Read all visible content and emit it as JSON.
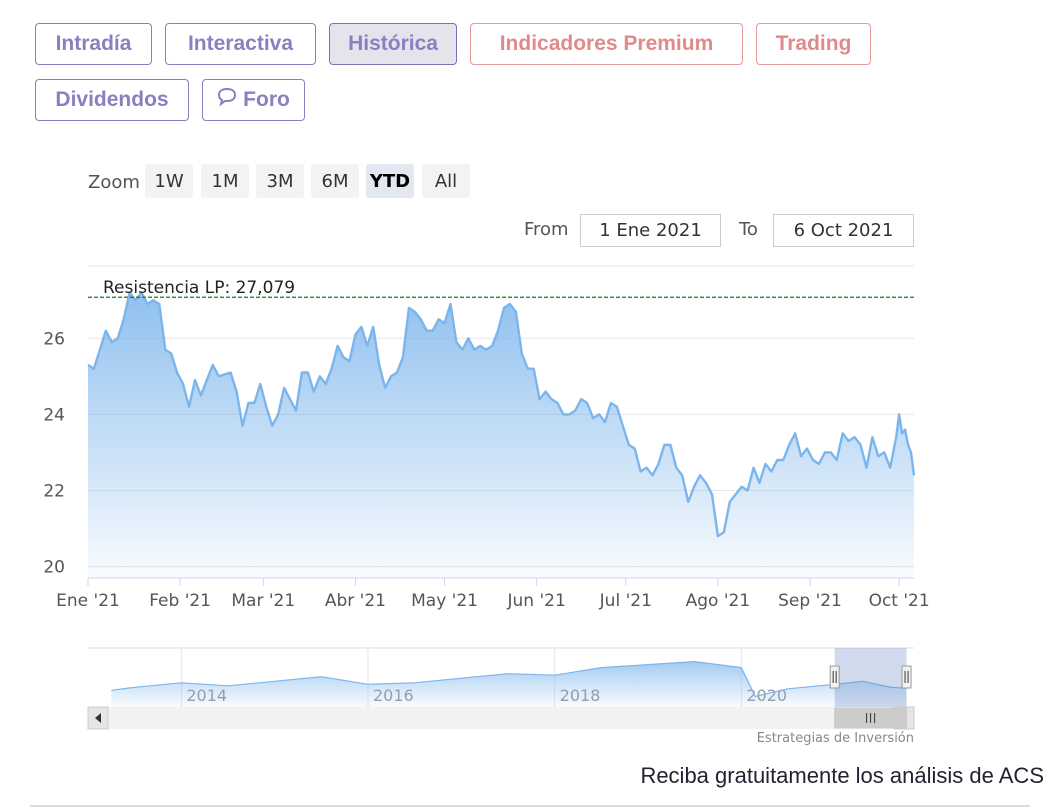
{
  "tabs": [
    {
      "label": "Intradía",
      "active": false,
      "premium": false
    },
    {
      "label": "Interactiva",
      "active": false,
      "premium": false
    },
    {
      "label": "Histórica",
      "active": true,
      "premium": false
    },
    {
      "label": "Indicadores Premium",
      "active": false,
      "premium": true
    },
    {
      "label": "Trading",
      "active": false,
      "premium": true
    },
    {
      "label": "Dividendos",
      "active": false,
      "premium": false
    },
    {
      "label": "Foro",
      "active": false,
      "premium": false,
      "icon": "chat-bubble-icon"
    }
  ],
  "zoom": {
    "label": "Zoom",
    "buttons": [
      "1W",
      "1M",
      "3M",
      "6M",
      "YTD",
      "All"
    ],
    "selected": "YTD"
  },
  "range": {
    "from_label": "From",
    "from_value": "1 Ene 2021",
    "to_label": "To",
    "to_value": "6 Oct 2021"
  },
  "credit": "Estrategias de Inversión",
  "footer": "Reciba gratuitamente los análisis de ACS",
  "colors": {
    "accent": "#8a7fc0",
    "premium": "#e08a8a",
    "line": "#7cb5ec",
    "resistance": "#1a7a1a"
  },
  "chart_data": {
    "type": "area",
    "title": "",
    "xlabel": "",
    "ylabel": "",
    "ylim": [
      19.7,
      27.9
    ],
    "y_ticks": [
      "20",
      "22",
      "24",
      "26"
    ],
    "x_ticks": [
      "Ene '21",
      "Feb '21",
      "Mar '21",
      "Abr '21",
      "May '21",
      "Jun '21",
      "Jul '21",
      "Ago '21",
      "Sep '21",
      "Oct '21"
    ],
    "grid": true,
    "resistance": {
      "label": "Resistencia LP: 27,079",
      "value": 27.079
    },
    "series": [
      {
        "points": [
          [
            "2021-01-01",
            25.3
          ],
          [
            "2021-01-03",
            25.2
          ],
          [
            "2021-01-05",
            25.7
          ],
          [
            "2021-01-07",
            26.2
          ],
          [
            "2021-01-09",
            25.9
          ],
          [
            "2021-01-11",
            26.0
          ],
          [
            "2021-01-13",
            26.5
          ],
          [
            "2021-01-15",
            27.2
          ],
          [
            "2021-01-17",
            27.0
          ],
          [
            "2021-01-19",
            27.2
          ],
          [
            "2021-01-21",
            26.9
          ],
          [
            "2021-01-23",
            27.0
          ],
          [
            "2021-01-25",
            26.9
          ],
          [
            "2021-01-27",
            25.7
          ],
          [
            "2021-01-29",
            25.6
          ],
          [
            "2021-01-31",
            25.1
          ],
          [
            "2021-02-02",
            24.8
          ],
          [
            "2021-02-04",
            24.2
          ],
          [
            "2021-02-06",
            24.9
          ],
          [
            "2021-02-08",
            24.5
          ],
          [
            "2021-02-10",
            24.9
          ],
          [
            "2021-02-12",
            25.3
          ],
          [
            "2021-02-14",
            25.0
          ],
          [
            "2021-02-18",
            25.1
          ],
          [
            "2021-02-20",
            24.6
          ],
          [
            "2021-02-22",
            23.7
          ],
          [
            "2021-02-24",
            24.3
          ],
          [
            "2021-02-26",
            24.3
          ],
          [
            "2021-02-28",
            24.8
          ],
          [
            "2021-03-02",
            24.2
          ],
          [
            "2021-03-04",
            23.7
          ],
          [
            "2021-03-06",
            24.0
          ],
          [
            "2021-03-08",
            24.7
          ],
          [
            "2021-03-10",
            24.4
          ],
          [
            "2021-03-12",
            24.1
          ],
          [
            "2021-03-14",
            25.1
          ],
          [
            "2021-03-16",
            25.1
          ],
          [
            "2021-03-18",
            24.6
          ],
          [
            "2021-03-20",
            25.0
          ],
          [
            "2021-03-22",
            24.8
          ],
          [
            "2021-03-24",
            25.2
          ],
          [
            "2021-03-26",
            25.8
          ],
          [
            "2021-03-28",
            25.5
          ],
          [
            "2021-03-30",
            25.4
          ],
          [
            "2021-04-01",
            26.1
          ],
          [
            "2021-04-03",
            26.3
          ],
          [
            "2021-04-05",
            25.8
          ],
          [
            "2021-04-07",
            26.3
          ],
          [
            "2021-04-09",
            25.3
          ],
          [
            "2021-04-11",
            24.7
          ],
          [
            "2021-04-13",
            25.0
          ],
          [
            "2021-04-15",
            25.1
          ],
          [
            "2021-04-17",
            25.5
          ],
          [
            "2021-04-19",
            26.8
          ],
          [
            "2021-04-21",
            26.7
          ],
          [
            "2021-04-23",
            26.5
          ],
          [
            "2021-04-25",
            26.2
          ],
          [
            "2021-04-27",
            26.2
          ],
          [
            "2021-04-29",
            26.5
          ],
          [
            "2021-05-01",
            26.4
          ],
          [
            "2021-05-03",
            26.9
          ],
          [
            "2021-05-05",
            25.9
          ],
          [
            "2021-05-07",
            25.7
          ],
          [
            "2021-05-09",
            26.0
          ],
          [
            "2021-05-11",
            25.7
          ],
          [
            "2021-05-13",
            25.8
          ],
          [
            "2021-05-15",
            25.7
          ],
          [
            "2021-05-17",
            25.8
          ],
          [
            "2021-05-19",
            26.2
          ],
          [
            "2021-05-21",
            26.8
          ],
          [
            "2021-05-23",
            26.9
          ],
          [
            "2021-05-25",
            26.7
          ],
          [
            "2021-05-27",
            25.6
          ],
          [
            "2021-05-29",
            25.2
          ],
          [
            "2021-05-31",
            25.2
          ],
          [
            "2021-06-02",
            24.4
          ],
          [
            "2021-06-04",
            24.6
          ],
          [
            "2021-06-06",
            24.4
          ],
          [
            "2021-06-08",
            24.3
          ],
          [
            "2021-06-10",
            24.0
          ],
          [
            "2021-06-12",
            24.0
          ],
          [
            "2021-06-14",
            24.1
          ],
          [
            "2021-06-16",
            24.4
          ],
          [
            "2021-06-18",
            24.3
          ],
          [
            "2021-06-20",
            23.9
          ],
          [
            "2021-06-22",
            24.0
          ],
          [
            "2021-06-24",
            23.8
          ],
          [
            "2021-06-26",
            24.3
          ],
          [
            "2021-06-28",
            24.2
          ],
          [
            "2021-06-30",
            23.7
          ],
          [
            "2021-07-02",
            23.2
          ],
          [
            "2021-07-04",
            23.1
          ],
          [
            "2021-07-06",
            22.5
          ],
          [
            "2021-07-08",
            22.6
          ],
          [
            "2021-07-10",
            22.4
          ],
          [
            "2021-07-12",
            22.7
          ],
          [
            "2021-07-14",
            23.2
          ],
          [
            "2021-07-16",
            23.2
          ],
          [
            "2021-07-18",
            22.6
          ],
          [
            "2021-07-20",
            22.4
          ],
          [
            "2021-07-22",
            21.7
          ],
          [
            "2021-07-24",
            22.1
          ],
          [
            "2021-07-26",
            22.4
          ],
          [
            "2021-07-28",
            22.2
          ],
          [
            "2021-07-30",
            21.9
          ],
          [
            "2021-08-01",
            20.8
          ],
          [
            "2021-08-03",
            20.9
          ],
          [
            "2021-08-05",
            21.7
          ],
          [
            "2021-08-07",
            21.9
          ],
          [
            "2021-08-09",
            22.1
          ],
          [
            "2021-08-11",
            22.0
          ],
          [
            "2021-08-13",
            22.6
          ],
          [
            "2021-08-15",
            22.2
          ],
          [
            "2021-08-17",
            22.7
          ],
          [
            "2021-08-19",
            22.5
          ],
          [
            "2021-08-21",
            22.8
          ],
          [
            "2021-08-23",
            22.8
          ],
          [
            "2021-08-25",
            23.2
          ],
          [
            "2021-08-27",
            23.5
          ],
          [
            "2021-08-29",
            22.9
          ],
          [
            "2021-08-31",
            23.1
          ],
          [
            "2021-09-02",
            22.8
          ],
          [
            "2021-09-04",
            22.7
          ],
          [
            "2021-09-06",
            23.0
          ],
          [
            "2021-09-08",
            23.0
          ],
          [
            "2021-09-10",
            22.8
          ],
          [
            "2021-09-12",
            23.5
          ],
          [
            "2021-09-14",
            23.3
          ],
          [
            "2021-09-16",
            23.4
          ],
          [
            "2021-09-18",
            23.2
          ],
          [
            "2021-09-20",
            22.6
          ],
          [
            "2021-09-22",
            23.4
          ],
          [
            "2021-09-24",
            22.9
          ],
          [
            "2021-09-26",
            23.0
          ],
          [
            "2021-09-28",
            22.6
          ],
          [
            "2021-09-30",
            23.4
          ],
          [
            "2021-10-01",
            24.0
          ],
          [
            "2021-10-02",
            23.5
          ],
          [
            "2021-10-03",
            23.6
          ],
          [
            "2021-10-04",
            23.2
          ],
          [
            "2021-10-05",
            23.0
          ],
          [
            "2021-10-06",
            22.4
          ]
        ]
      }
    ],
    "navigator": {
      "x_ticks": [
        "2014",
        "2016",
        "2018",
        "2020"
      ],
      "range": [
        2013.0,
        2021.85
      ],
      "selected": [
        2021.0,
        2021.77
      ],
      "values": [
        [
          2013.25,
          21.0
        ],
        [
          2013.5,
          23.0
        ],
        [
          2014.0,
          26.0
        ],
        [
          2014.5,
          24.0
        ],
        [
          2015.0,
          27.0
        ],
        [
          2015.5,
          30.0
        ],
        [
          2016.0,
          25.0
        ],
        [
          2016.5,
          26.0
        ],
        [
          2017.0,
          29.0
        ],
        [
          2017.5,
          32.0
        ],
        [
          2018.0,
          31.0
        ],
        [
          2018.5,
          36.0
        ],
        [
          2019.0,
          38.0
        ],
        [
          2019.5,
          40.0
        ],
        [
          2020.0,
          36.0
        ],
        [
          2020.15,
          17.0
        ],
        [
          2020.5,
          22.0
        ],
        [
          2021.0,
          25.0
        ],
        [
          2021.3,
          27.0
        ],
        [
          2021.6,
          23.0
        ],
        [
          2021.77,
          22.4
        ]
      ]
    }
  }
}
